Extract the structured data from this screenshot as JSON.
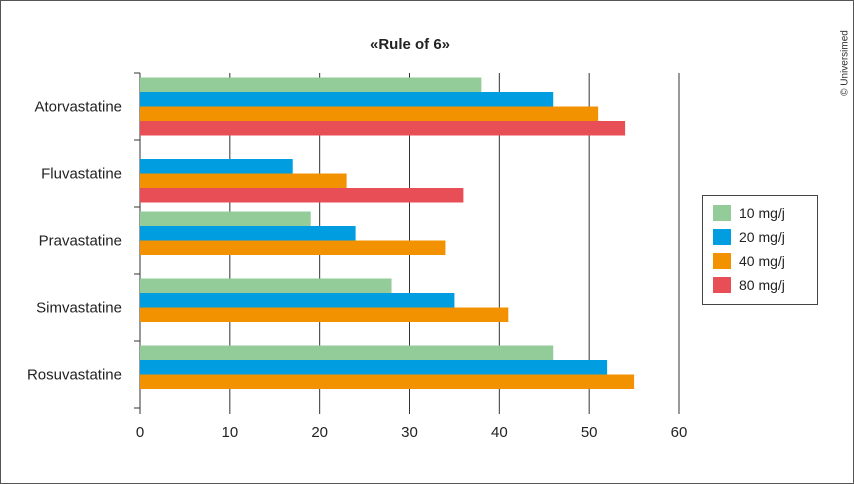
{
  "chart_data": {
    "type": "bar",
    "orientation": "horizontal",
    "title": "«Rule of 6»",
    "categories": [
      "Atorvastatine",
      "Fluvastatine",
      "Pravastatine",
      "Simvastatine",
      "Rosuvastatine"
    ],
    "series": [
      {
        "name": "10 mg/j",
        "color": "#93cc99",
        "values": [
          38,
          null,
          19,
          28,
          46
        ]
      },
      {
        "name": "20 mg/j",
        "color": "#009ee0",
        "values": [
          46,
          17,
          24,
          35,
          52
        ]
      },
      {
        "name": "40 mg/j",
        "color": "#f39200",
        "values": [
          51,
          23,
          34,
          41,
          55
        ]
      },
      {
        "name": "80 mg/j",
        "color": "#e84e55",
        "values": [
          54,
          36,
          null,
          null,
          null
        ]
      }
    ],
    "xlim": [
      0,
      60
    ],
    "xticks": [
      "0",
      "10",
      "20",
      "30",
      "40",
      "50",
      "60"
    ],
    "grid": "vertical",
    "legend_position": "right"
  },
  "copyright": "© Universimed"
}
